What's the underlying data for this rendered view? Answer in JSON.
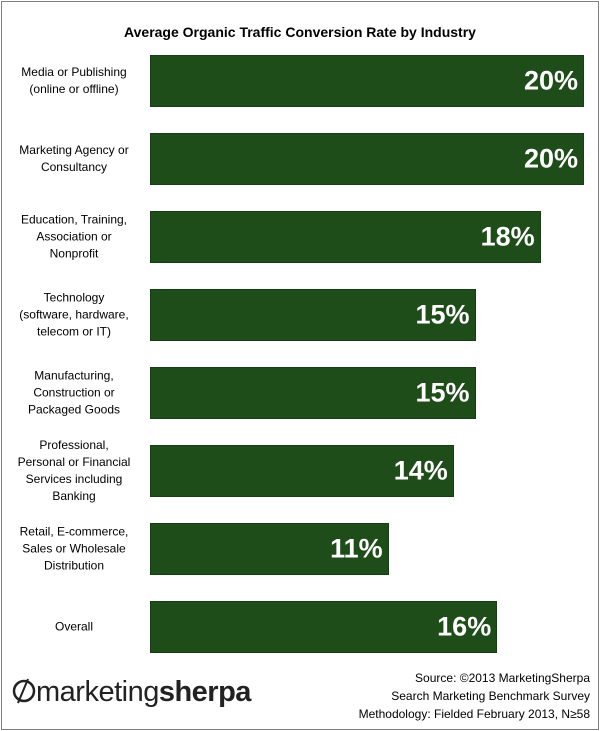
{
  "chart_data": {
    "type": "barh",
    "title": "Average Organic Traffic Conversion Rate by Industry",
    "categories": [
      "Media or Publishing\n(online or offline)",
      "Marketing Agency or\nConsultancy",
      "Education, Training,\nAssociation  or\nNonprofit",
      "Technology\n(software, hardware,\ntelecom or IT)",
      "Manufacturing,\nConstruction or\nPackaged Goods",
      "Professional,\nPersonal or Financial\nServices including\nBanking",
      "Retail, E-commerce,\nSales or Wholesale\nDistribution",
      "Overall"
    ],
    "values": [
      20,
      20,
      18,
      15,
      15,
      14,
      11,
      16
    ],
    "value_labels": [
      "20%",
      "20%",
      "18%",
      "15%",
      "15%",
      "14%",
      "11%",
      "16%"
    ],
    "color": "#1e4d1a",
    "xlim": [
      0,
      20
    ],
    "source": [
      "Source: ©2013 MarketingSherpa",
      "Search Marketing Benchmark Survey",
      "Methodology: Fielded February 2013, N≥58"
    ],
    "logo": [
      "marketing",
      "sherpa"
    ]
  }
}
